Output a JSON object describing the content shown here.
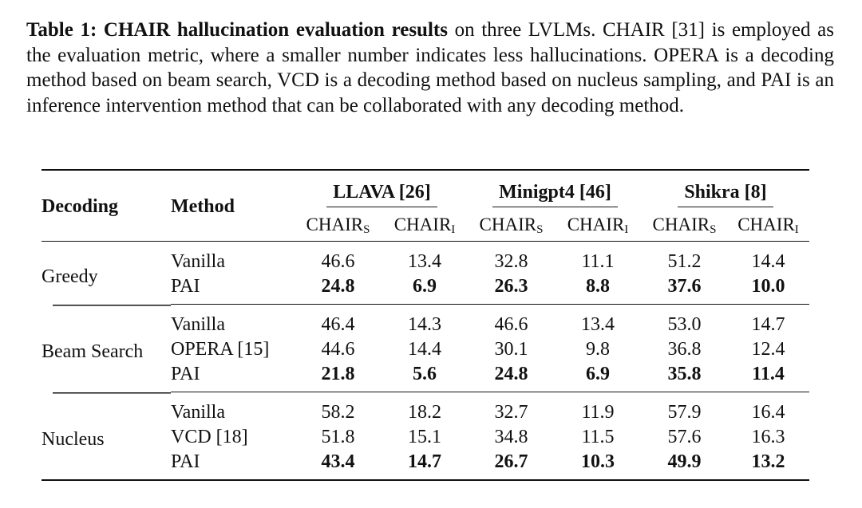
{
  "caption": {
    "label": "Table 1: CHAIR hallucination evaluation results",
    "text": " on three LVLMs. CHAIR [31] is employed as the evaluation metric, where a smaller number indicates less hallucinations. OPERA is a decoding method based on beam search, VCD is a decoding method based on nucleus sampling, and PAI is an inference intervention method that can be collaborated with any decoding method."
  },
  "table": {
    "col_decoding": "Decoding",
    "col_method": "Method",
    "models": [
      "LLAVA [26]",
      "Minigpt4 [46]",
      "Shikra [8]"
    ],
    "metric_s": "CHAIR",
    "metric_s_sub": "S",
    "metric_i": "CHAIR",
    "metric_i_sub": "I",
    "sections": [
      {
        "decoding": "Greedy",
        "rows": [
          {
            "method": "Vanilla",
            "values": [
              "46.6",
              "13.4",
              "32.8",
              "11.1",
              "51.2",
              "14.4"
            ],
            "bold": false
          },
          {
            "method": "PAI",
            "values": [
              "24.8",
              "6.9",
              "26.3",
              "8.8",
              "37.6",
              "10.0"
            ],
            "bold": true
          }
        ]
      },
      {
        "decoding": "Beam Search",
        "rows": [
          {
            "method": "Vanilla",
            "values": [
              "46.4",
              "14.3",
              "46.6",
              "13.4",
              "53.0",
              "14.7"
            ],
            "bold": false
          },
          {
            "method": "OPERA [15]",
            "values": [
              "44.6",
              "14.4",
              "30.1",
              "9.8",
              "36.8",
              "12.4"
            ],
            "bold": false
          },
          {
            "method": "PAI",
            "values": [
              "21.8",
              "5.6",
              "24.8",
              "6.9",
              "35.8",
              "11.4"
            ],
            "bold": true
          }
        ]
      },
      {
        "decoding": "Nucleus",
        "rows": [
          {
            "method": "Vanilla",
            "values": [
              "58.2",
              "18.2",
              "32.7",
              "11.9",
              "57.9",
              "16.4"
            ],
            "bold": false
          },
          {
            "method": "VCD [18]",
            "values": [
              "51.8",
              "15.1",
              "34.8",
              "11.5",
              "57.6",
              "16.3"
            ],
            "bold": false
          },
          {
            "method": "PAI",
            "values": [
              "43.4",
              "14.7",
              "26.7",
              "10.3",
              "49.9",
              "13.2"
            ],
            "bold": true
          }
        ]
      }
    ]
  }
}
